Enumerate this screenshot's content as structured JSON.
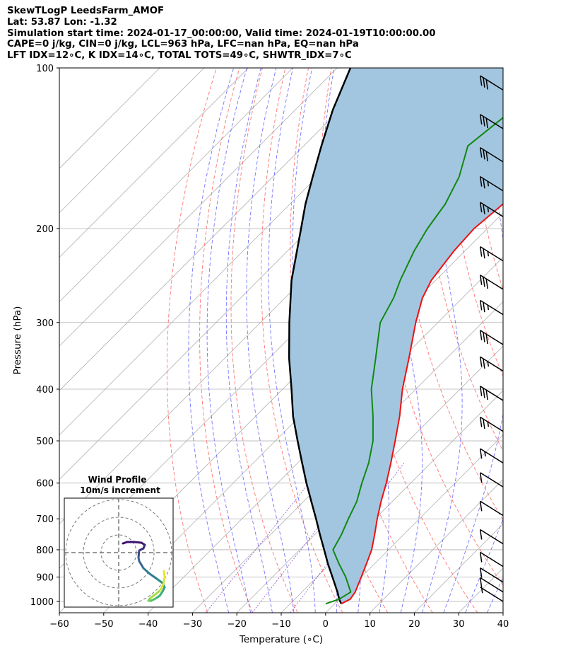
{
  "header": {
    "line1": "SkewTLogP LeedsFarm_AMOF",
    "line2": "Lat: 53.87   Lon: -1.32",
    "line3": "Simulation start time: 2024-01-17_00:00:00, Valid time: 2024-01-19T10:00:00.00",
    "line4": "CAPE=0 j/kg, CIN=0 j/kg, LCL=963 hPa, LFC=nan hPa, EQ=nan hPa",
    "line5": "LFT IDX=12∘C, K IDX=14∘C, TOTAL TOTS=49∘C, SHWTR_IDX=7∘C"
  },
  "chart_data": {
    "type": "line",
    "subtype": "skew-t log-p",
    "xlabel": "Temperature (∘C)",
    "ylabel": "Pressure (hPa)",
    "xlim": [
      -60,
      40
    ],
    "ylim": [
      1050,
      100
    ],
    "y_scale": "log",
    "grid": true,
    "x_ticks": [
      "−60",
      "−50",
      "−40",
      "−30",
      "−20",
      "−10",
      "0",
      "10",
      "20",
      "30",
      "40"
    ],
    "y_ticks": [
      "100",
      "200",
      "300",
      "400",
      "500",
      "600",
      "700",
      "800",
      "900",
      "1000"
    ],
    "colors": {
      "temperature": "#ee1111",
      "dewpoint": "#118811",
      "parcel": "#000000",
      "cape_cin_fill": "#a3c6e0",
      "dry_adiabats": "#ff6666",
      "moist_adiabats": "#6666ff",
      "mixing_ratio": "#9966cc",
      "isotherms": "#b0b0b0",
      "wind_barbs": "#000000"
    },
    "series": [
      {
        "name": "Temperature",
        "pressure": [
          1010,
          990,
          960,
          900,
          850,
          800,
          750,
          700,
          650,
          600,
          550,
          500,
          450,
          400,
          350,
          300,
          270,
          250,
          220,
          200,
          180,
          160,
          140,
          120,
          100
        ],
        "values": [
          1.5,
          2.5,
          2.0,
          0.0,
          -1.8,
          -3.8,
          -6.5,
          -9.5,
          -12.5,
          -15.5,
          -19.0,
          -23.0,
          -27.5,
          -33.0,
          -38.5,
          -45.0,
          -49.0,
          -51.0,
          -52.5,
          -53.0,
          -52.0,
          -53.0,
          -53.0,
          -52.5,
          -52.0
        ]
      },
      {
        "name": "Dewpoint",
        "pressure": [
          1010,
          990,
          960,
          900,
          850,
          800,
          750,
          700,
          650,
          600,
          550,
          500,
          450,
          400,
          350,
          300,
          270,
          250,
          220,
          200,
          180,
          160,
          140,
          120,
          100
        ],
        "values": [
          -2.0,
          0.0,
          1.0,
          -3.5,
          -8.0,
          -12.5,
          -14.0,
          -16.0,
          -18.0,
          -21.0,
          -24.0,
          -28.0,
          -33.5,
          -40.0,
          -46.0,
          -53.0,
          -55.5,
          -58.0,
          -61.5,
          -63.5,
          -65.0,
          -68.0,
          -73.0,
          -71.0,
          -70.0
        ]
      },
      {
        "name": "Parcel",
        "pressure": [
          1010,
          990,
          960,
          900,
          850,
          800,
          750,
          700,
          650,
          600,
          550,
          500,
          450,
          400,
          350,
          300,
          250,
          200,
          180,
          160,
          140,
          120,
          100
        ],
        "values": [
          1.5,
          0.0,
          -2.0,
          -6.5,
          -10.5,
          -14.5,
          -18.8,
          -23.3,
          -28.2,
          -33.5,
          -39.0,
          -45.0,
          -51.5,
          -58.0,
          -65.5,
          -73.5,
          -82.5,
          -92.0,
          -96.5,
          -101.0,
          -106.0,
          -111.5,
          -117.0
        ]
      }
    ],
    "wind_barbs": {
      "pressure": [
        110,
        130,
        150,
        170,
        190,
        230,
        260,
        290,
        330,
        370,
        420,
        480,
        550,
        610,
        690,
        780,
        860,
        920,
        960,
        1000
      ],
      "speed_kt": [
        30,
        30,
        30,
        25,
        25,
        25,
        30,
        25,
        30,
        25,
        30,
        25,
        15,
        10,
        10,
        10,
        10,
        10,
        10,
        5
      ]
    },
    "inset": {
      "title_line1": "Wind Profile",
      "title_line2": "10m/s increment",
      "rings_ms": [
        10,
        20,
        30
      ]
    }
  }
}
